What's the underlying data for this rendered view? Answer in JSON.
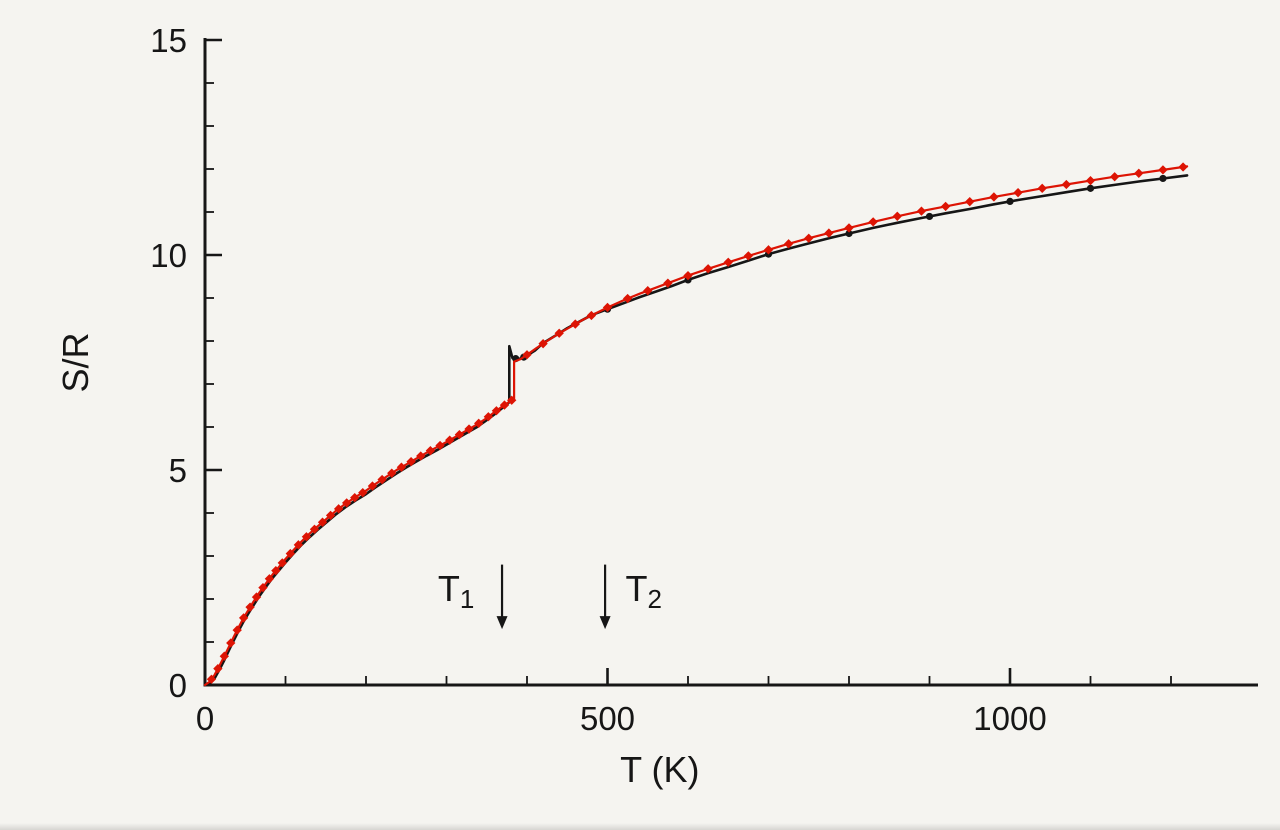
{
  "figure": {
    "background": "#f5f4f0",
    "axis_color": "#161616"
  },
  "chart_data": {
    "type": "line",
    "title": "",
    "xlabel": "T (K)",
    "ylabel": "S/R",
    "xlim": [
      0,
      1300
    ],
    "ylim": [
      0,
      15
    ],
    "xticks": [
      0,
      500,
      1000
    ],
    "xtick_minor_step": 100,
    "xtick_minor_max": 1250,
    "yticks": [
      0,
      5,
      10,
      15
    ],
    "ytick_minor_step": 1,
    "grid": false,
    "legend": "none",
    "series": [
      {
        "name": "black-curve",
        "color": "#161616",
        "line_width": 2.6,
        "marker": "circle",
        "marker_size": 3.6,
        "marker_x": [
          386,
          396,
          500,
          600,
          700,
          800,
          900,
          1000,
          1100,
          1190
        ],
        "points": [
          [
            0,
            0
          ],
          [
            6,
            0.04
          ],
          [
            12,
            0.16
          ],
          [
            18,
            0.36
          ],
          [
            24,
            0.58
          ],
          [
            30,
            0.82
          ],
          [
            36,
            1.05
          ],
          [
            42,
            1.27
          ],
          [
            48,
            1.48
          ],
          [
            54,
            1.67
          ],
          [
            60,
            1.85
          ],
          [
            68,
            2.08
          ],
          [
            76,
            2.29
          ],
          [
            84,
            2.49
          ],
          [
            92,
            2.67
          ],
          [
            100,
            2.85
          ],
          [
            110,
            3.06
          ],
          [
            120,
            3.26
          ],
          [
            130,
            3.44
          ],
          [
            140,
            3.61
          ],
          [
            150,
            3.77
          ],
          [
            162,
            3.96
          ],
          [
            174,
            4.13
          ],
          [
            187,
            4.29
          ],
          [
            200,
            4.44
          ],
          [
            212,
            4.6
          ],
          [
            225,
            4.76
          ],
          [
            238,
            4.92
          ],
          [
            250,
            5.06
          ],
          [
            262,
            5.19
          ],
          [
            275,
            5.33
          ],
          [
            288,
            5.46
          ],
          [
            300,
            5.59
          ],
          [
            312,
            5.72
          ],
          [
            325,
            5.86
          ],
          [
            338,
            6.0
          ],
          [
            350,
            6.16
          ],
          [
            360,
            6.3
          ],
          [
            368,
            6.42
          ],
          [
            374,
            6.51
          ],
          [
            378,
            6.58
          ],
          [
            378,
            7.88
          ],
          [
            382,
            7.6
          ],
          [
            390,
            7.58
          ],
          [
            398,
            7.64
          ],
          [
            410,
            7.78
          ],
          [
            420,
            7.95
          ],
          [
            435,
            8.12
          ],
          [
            450,
            8.3
          ],
          [
            465,
            8.45
          ],
          [
            480,
            8.6
          ],
          [
            500,
            8.74
          ],
          [
            520,
            8.88
          ],
          [
            540,
            9.02
          ],
          [
            560,
            9.15
          ],
          [
            580,
            9.28
          ],
          [
            600,
            9.42
          ],
          [
            625,
            9.58
          ],
          [
            650,
            9.72
          ],
          [
            675,
            9.87
          ],
          [
            700,
            10.02
          ],
          [
            725,
            10.15
          ],
          [
            750,
            10.27
          ],
          [
            775,
            10.39
          ],
          [
            800,
            10.5
          ],
          [
            830,
            10.63
          ],
          [
            860,
            10.75
          ],
          [
            890,
            10.86
          ],
          [
            920,
            10.97
          ],
          [
            950,
            11.07
          ],
          [
            980,
            11.18
          ],
          [
            1010,
            11.28
          ],
          [
            1040,
            11.37
          ],
          [
            1070,
            11.46
          ],
          [
            1100,
            11.55
          ],
          [
            1130,
            11.63
          ],
          [
            1160,
            11.71
          ],
          [
            1190,
            11.78
          ],
          [
            1220,
            11.85
          ]
        ]
      },
      {
        "name": "red-curve",
        "color": "#dd1404",
        "line_width": 2.2,
        "marker": "diamond",
        "marker_size": 6.6,
        "marker_x": [
          8,
          16,
          24,
          32,
          40,
          48,
          56,
          64,
          72,
          80,
          88,
          96,
          106,
          116,
          126,
          136,
          146,
          156,
          166,
          176,
          186,
          196,
          208,
          220,
          232,
          244,
          256,
          268,
          280,
          292,
          304,
          316,
          328,
          340,
          352,
          362,
          372,
          381,
          400,
          420,
          440,
          460,
          480,
          500,
          525,
          550,
          575,
          600,
          625,
          650,
          675,
          700,
          725,
          750,
          775,
          800,
          830,
          860,
          890,
          920,
          950,
          980,
          1010,
          1040,
          1070,
          1100,
          1130,
          1160,
          1190,
          1215
        ],
        "points": [
          [
            0,
            0
          ],
          [
            6,
            0.08
          ],
          [
            12,
            0.24
          ],
          [
            18,
            0.45
          ],
          [
            24,
            0.67
          ],
          [
            30,
            0.9
          ],
          [
            36,
            1.13
          ],
          [
            42,
            1.35
          ],
          [
            48,
            1.56
          ],
          [
            54,
            1.75
          ],
          [
            60,
            1.93
          ],
          [
            68,
            2.16
          ],
          [
            76,
            2.37
          ],
          [
            84,
            2.57
          ],
          [
            92,
            2.75
          ],
          [
            100,
            2.93
          ],
          [
            110,
            3.14
          ],
          [
            120,
            3.34
          ],
          [
            130,
            3.52
          ],
          [
            140,
            3.69
          ],
          [
            150,
            3.85
          ],
          [
            162,
            4.04
          ],
          [
            174,
            4.21
          ],
          [
            187,
            4.37
          ],
          [
            200,
            4.52
          ],
          [
            212,
            4.68
          ],
          [
            225,
            4.84
          ],
          [
            238,
            5.0
          ],
          [
            250,
            5.13
          ],
          [
            262,
            5.26
          ],
          [
            275,
            5.4
          ],
          [
            288,
            5.53
          ],
          [
            300,
            5.65
          ],
          [
            312,
            5.78
          ],
          [
            325,
            5.92
          ],
          [
            338,
            6.06
          ],
          [
            350,
            6.21
          ],
          [
            360,
            6.35
          ],
          [
            368,
            6.46
          ],
          [
            376,
            6.56
          ],
          [
            384,
            6.66
          ],
          [
            384,
            7.52
          ],
          [
            392,
            7.58
          ],
          [
            400,
            7.68
          ],
          [
            412,
            7.84
          ],
          [
            425,
            8.0
          ],
          [
            440,
            8.18
          ],
          [
            455,
            8.34
          ],
          [
            470,
            8.5
          ],
          [
            485,
            8.64
          ],
          [
            500,
            8.78
          ],
          [
            520,
            8.95
          ],
          [
            540,
            9.1
          ],
          [
            560,
            9.24
          ],
          [
            580,
            9.38
          ],
          [
            600,
            9.52
          ],
          [
            625,
            9.68
          ],
          [
            650,
            9.83
          ],
          [
            675,
            9.98
          ],
          [
            700,
            10.12
          ],
          [
            725,
            10.26
          ],
          [
            750,
            10.39
          ],
          [
            775,
            10.51
          ],
          [
            800,
            10.63
          ],
          [
            830,
            10.77
          ],
          [
            860,
            10.9
          ],
          [
            890,
            11.02
          ],
          [
            920,
            11.13
          ],
          [
            950,
            11.24
          ],
          [
            980,
            11.35
          ],
          [
            1010,
            11.45
          ],
          [
            1040,
            11.55
          ],
          [
            1070,
            11.64
          ],
          [
            1100,
            11.73
          ],
          [
            1130,
            11.82
          ],
          [
            1160,
            11.9
          ],
          [
            1190,
            11.98
          ],
          [
            1220,
            12.06
          ]
        ]
      }
    ],
    "annotations": [
      {
        "text_main": "T",
        "text_sub": "1",
        "label_x": 312,
        "label_y": 1.95,
        "arrow_x": 369,
        "arrow_y_from": 2.8,
        "arrow_y_to": 1.3
      },
      {
        "text_main": "T",
        "text_sub": "2",
        "label_x": 545,
        "label_y": 1.95,
        "arrow_x": 497,
        "arrow_y_from": 2.8,
        "arrow_y_to": 1.3
      }
    ]
  }
}
